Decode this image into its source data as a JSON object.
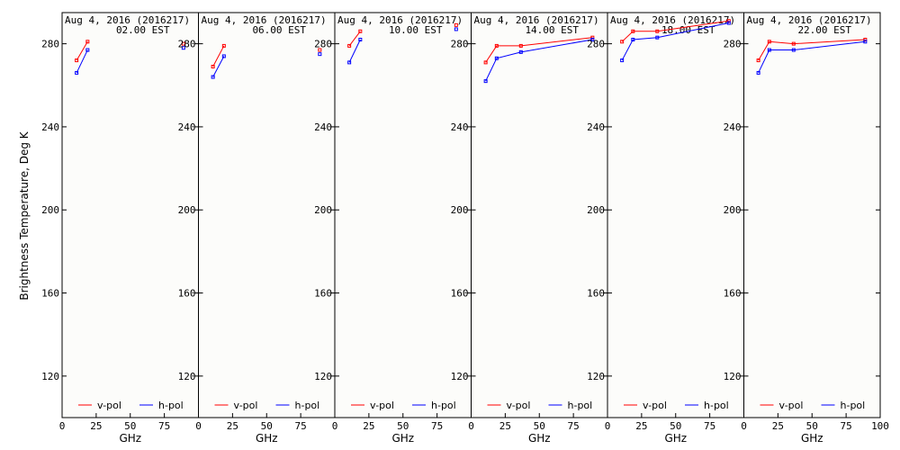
{
  "chart_data": {
    "type": "line",
    "ylabel": "Brightness Temperature, Deg K",
    "ylim": [
      100,
      295
    ],
    "yticks": [
      120,
      160,
      200,
      240,
      280
    ],
    "grid": false,
    "legend_placement": "bottom",
    "colors": {
      "v-pol": "#ff0000",
      "h-pol": "#0000ff"
    },
    "panels": [
      {
        "title_line1": "Aug  4, 2016 (2016217)",
        "title_line2": "02.00 EST",
        "xlabel": "GHz",
        "xlim": [
          0,
          100
        ],
        "xticks": [
          0,
          25,
          50,
          75
        ],
        "series": [
          {
            "name": "v-pol",
            "points": [
              [
                10.65,
                272
              ],
              [
                18.7,
                281
              ]
            ],
            "isolated": [
              [
                89,
                280
              ]
            ]
          },
          {
            "name": "h-pol",
            "points": [
              [
                10.65,
                266
              ],
              [
                18.7,
                277
              ]
            ],
            "isolated": [
              [
                89,
                278
              ]
            ]
          }
        ],
        "legend": [
          "v-pol",
          "h-pol"
        ]
      },
      {
        "title_line1": "Aug  4, 2016 (2016217)",
        "title_line2": "06.00 EST",
        "xlabel": "GHz",
        "xlim": [
          0,
          100
        ],
        "xticks": [
          0,
          25,
          50,
          75
        ],
        "series": [
          {
            "name": "v-pol",
            "points": [
              [
                10.65,
                269
              ],
              [
                18.7,
                279
              ]
            ],
            "isolated": [
              [
                89,
                277
              ]
            ]
          },
          {
            "name": "h-pol",
            "points": [
              [
                10.65,
                264
              ],
              [
                18.7,
                274
              ]
            ],
            "isolated": [
              [
                89,
                275
              ]
            ]
          }
        ],
        "legend": [
          "v-pol",
          "h-pol"
        ]
      },
      {
        "title_line1": "Aug  4, 2016 (2016217)",
        "title_line2": "10.00 EST",
        "xlabel": "GHz",
        "xlim": [
          0,
          100
        ],
        "xticks": [
          0,
          25,
          50,
          75
        ],
        "series": [
          {
            "name": "v-pol",
            "points": [
              [
                10.65,
                279
              ],
              [
                18.7,
                286
              ]
            ],
            "isolated": [
              [
                89,
                289
              ]
            ]
          },
          {
            "name": "h-pol",
            "points": [
              [
                10.65,
                271
              ],
              [
                18.7,
                282
              ]
            ],
            "isolated": [
              [
                89,
                287
              ]
            ]
          }
        ],
        "legend": [
          "v-pol",
          "h-pol"
        ]
      },
      {
        "title_line1": "Aug  4, 2016 (2016217)",
        "title_line2": "14.00 EST",
        "xlabel": "GHz",
        "xlim": [
          0,
          100
        ],
        "xticks": [
          0,
          25,
          50,
          75
        ],
        "series": [
          {
            "name": "v-pol",
            "points": [
              [
                10.65,
                271
              ],
              [
                18.7,
                279
              ],
              [
                36.5,
                279
              ],
              [
                89,
                283
              ]
            ],
            "isolated": []
          },
          {
            "name": "h-pol",
            "points": [
              [
                10.65,
                262
              ],
              [
                18.7,
                273
              ],
              [
                36.5,
                276
              ],
              [
                89,
                282
              ]
            ],
            "isolated": []
          }
        ],
        "legend": [
          "v-pol",
          "h-pol"
        ]
      },
      {
        "title_line1": "Aug  4, 2016 (2016217)",
        "title_line2": "18.00 EST",
        "xlabel": "GHz",
        "xlim": [
          0,
          100
        ],
        "xticks": [
          0,
          25,
          50,
          75
        ],
        "series": [
          {
            "name": "v-pol",
            "points": [
              [
                10.65,
                281
              ],
              [
                18.7,
                286
              ],
              [
                36.5,
                286
              ],
              [
                89,
                291
              ]
            ],
            "isolated": []
          },
          {
            "name": "h-pol",
            "points": [
              [
                10.65,
                272
              ],
              [
                18.7,
                282
              ],
              [
                36.5,
                283
              ],
              [
                89,
                290
              ]
            ],
            "isolated": []
          }
        ],
        "legend": [
          "v-pol",
          "h-pol"
        ]
      },
      {
        "title_line1": "Aug  4, 2016 (2016217)",
        "title_line2": "22.00 EST",
        "xlabel": "GHz",
        "xlim": [
          0,
          100
        ],
        "xticks": [
          0,
          25,
          50,
          75,
          100
        ],
        "series": [
          {
            "name": "v-pol",
            "points": [
              [
                10.65,
                272
              ],
              [
                18.7,
                281
              ],
              [
                36.5,
                280
              ],
              [
                89,
                282
              ]
            ],
            "isolated": []
          },
          {
            "name": "h-pol",
            "points": [
              [
                10.65,
                266
              ],
              [
                18.7,
                277
              ],
              [
                36.5,
                277
              ],
              [
                89,
                281
              ]
            ],
            "isolated": []
          }
        ],
        "legend": [
          "v-pol",
          "h-pol"
        ]
      }
    ]
  }
}
